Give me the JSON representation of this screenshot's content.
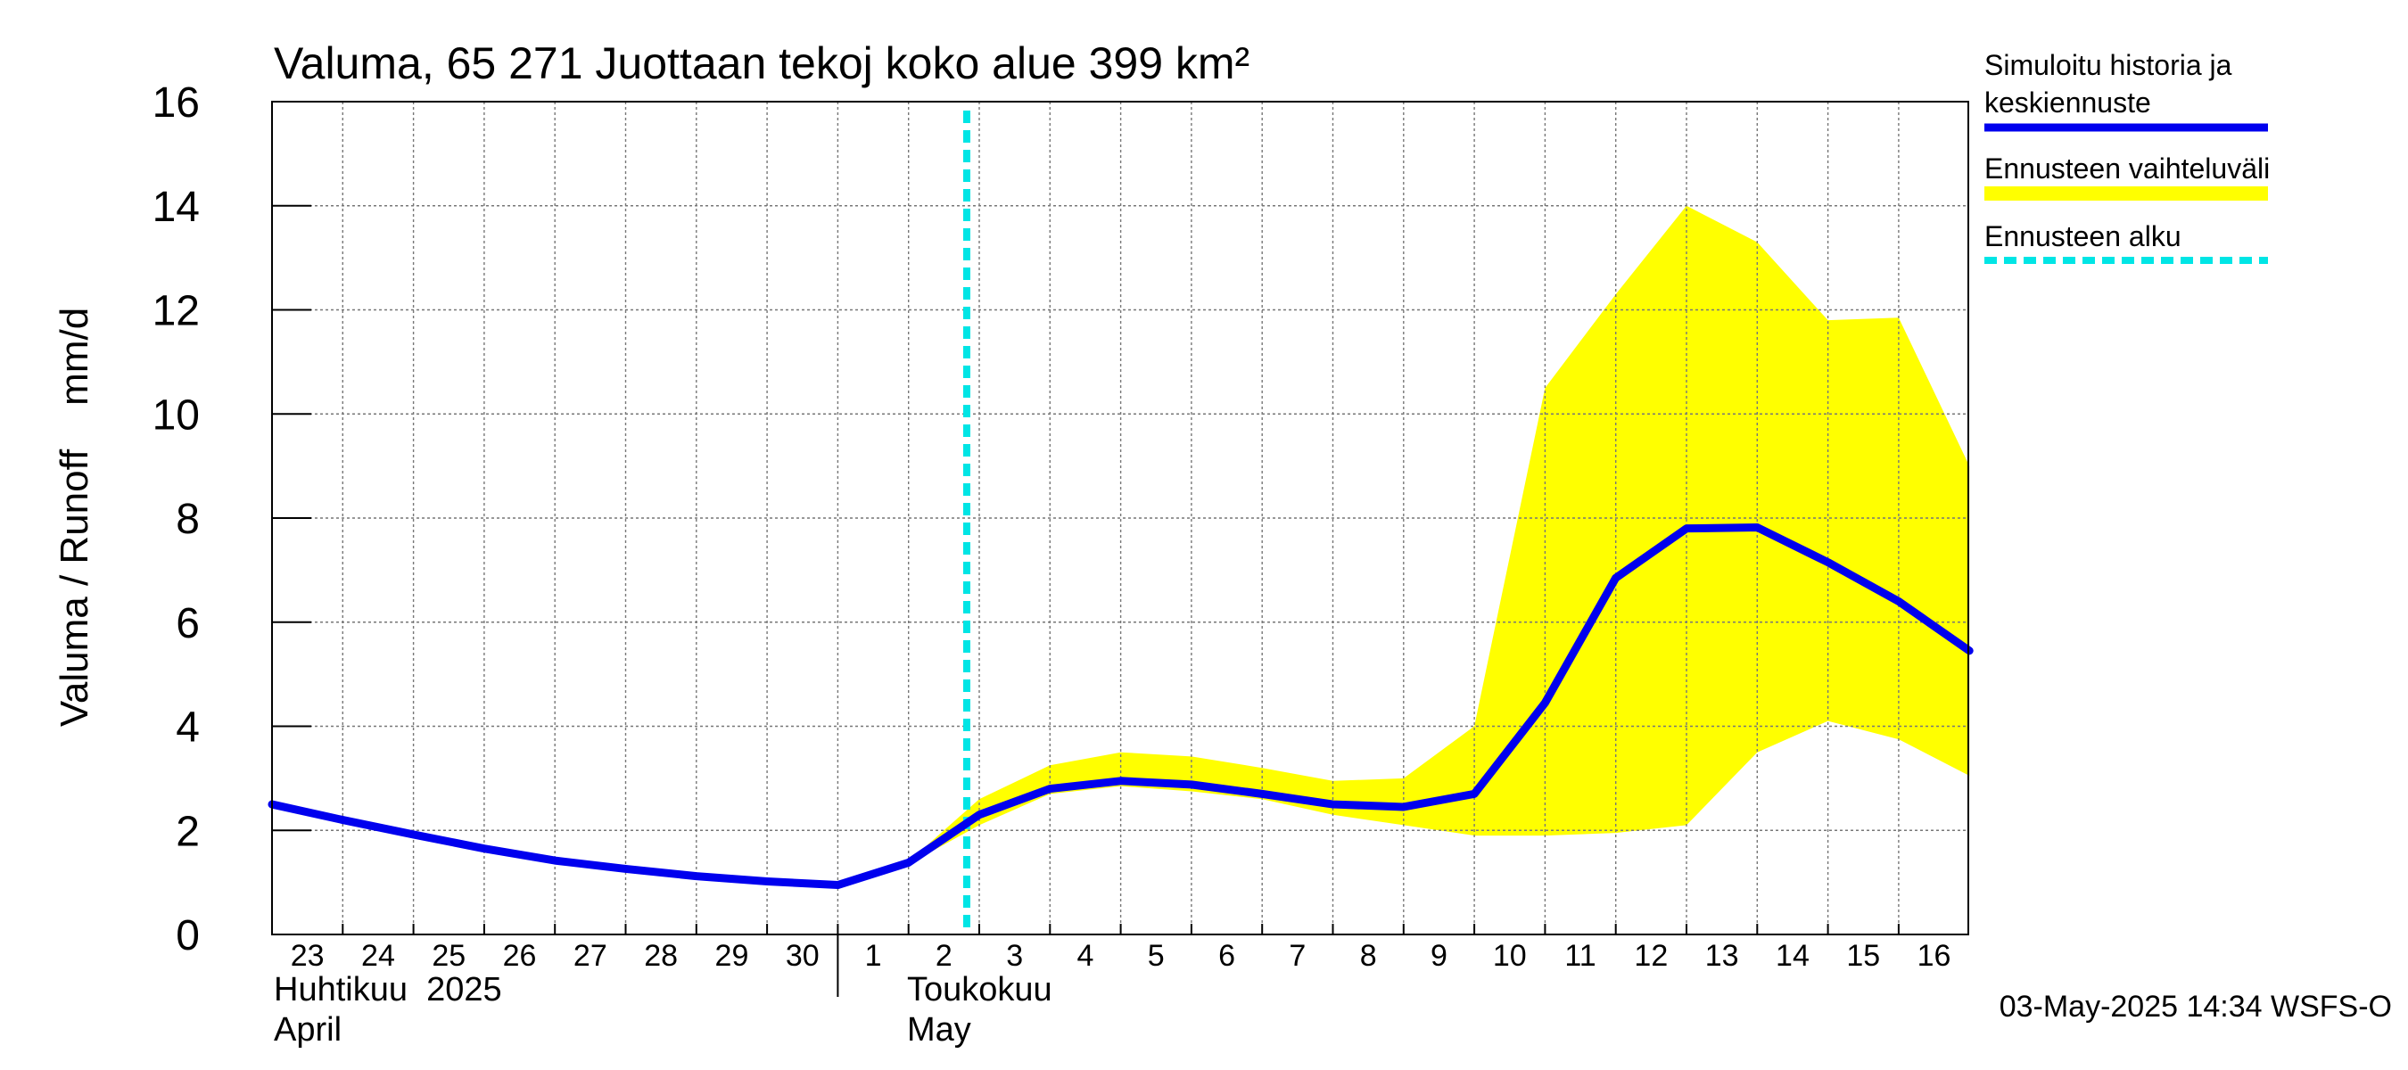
{
  "chart_data": {
    "type": "line",
    "title": "Valuma, 65 271 Juottaan tekoj koko alue 399 km²",
    "ylabel": "Valuma / Runoff    mm/d",
    "ylim": [
      0,
      16
    ],
    "yticks": [
      0,
      2,
      4,
      6,
      8,
      10,
      12,
      14,
      16
    ],
    "x_dates": [
      "2025-04-23",
      "2025-04-24",
      "2025-04-25",
      "2025-04-26",
      "2025-04-27",
      "2025-04-28",
      "2025-04-29",
      "2025-04-30",
      "2025-05-01",
      "2025-05-02",
      "2025-05-03",
      "2025-05-04",
      "2025-05-05",
      "2025-05-06",
      "2025-05-07",
      "2025-05-08",
      "2025-05-09",
      "2025-05-10",
      "2025-05-11",
      "2025-05-12",
      "2025-05-13",
      "2025-05-14",
      "2025-05-15",
      "2025-05-16"
    ],
    "x_tick_labels": [
      "23",
      "24",
      "25",
      "26",
      "27",
      "28",
      "29",
      "30",
      "1",
      "2",
      "3",
      "4",
      "5",
      "6",
      "7",
      "8",
      "9",
      "10",
      "11",
      "12",
      "13",
      "14",
      "15",
      "16"
    ],
    "month_labels": [
      {
        "line1": "Huhtikuu  2025",
        "line2": "April"
      },
      {
        "line1": "Toukokuu",
        "line2": "May"
      }
    ],
    "grid": true,
    "legend_position": "right",
    "series": [
      {
        "name": "Simuloitu historia ja keskiennuste",
        "color": "#0000ee",
        "points": [
          [
            "2025-04-23",
            2.5
          ],
          [
            "2025-04-24",
            2.2
          ],
          [
            "2025-04-25",
            1.92
          ],
          [
            "2025-04-26",
            1.65
          ],
          [
            "2025-04-27",
            1.42
          ],
          [
            "2025-04-28",
            1.26
          ],
          [
            "2025-04-29",
            1.12
          ],
          [
            "2025-04-30",
            1.02
          ],
          [
            "2025-05-01",
            0.95
          ],
          [
            "2025-05-02",
            1.38
          ],
          [
            "2025-05-03",
            2.3
          ],
          [
            "2025-05-04",
            2.8
          ],
          [
            "2025-05-05",
            2.95
          ],
          [
            "2025-05-06",
            2.88
          ],
          [
            "2025-05-07",
            2.7
          ],
          [
            "2025-05-08",
            2.5
          ],
          [
            "2025-05-09",
            2.45
          ],
          [
            "2025-05-10",
            2.7
          ],
          [
            "2025-05-11",
            4.45
          ],
          [
            "2025-05-12",
            6.85
          ],
          [
            "2025-05-13",
            7.8
          ],
          [
            "2025-05-14",
            7.82
          ],
          [
            "2025-05-15",
            7.15
          ],
          [
            "2025-05-16",
            6.4
          ],
          [
            "2025-05-17",
            5.45
          ]
        ]
      },
      {
        "name": "Ennusteen vaihteluväli",
        "color": "#ffff00",
        "upper": [
          [
            "2025-05-02",
            1.4
          ],
          [
            "2025-05-03",
            2.6
          ],
          [
            "2025-05-04",
            3.25
          ],
          [
            "2025-05-05",
            3.5
          ],
          [
            "2025-05-06",
            3.42
          ],
          [
            "2025-05-07",
            3.2
          ],
          [
            "2025-05-08",
            2.95
          ],
          [
            "2025-05-09",
            3.0
          ],
          [
            "2025-05-10",
            4.0
          ],
          [
            "2025-05-11",
            10.5
          ],
          [
            "2025-05-12",
            12.3
          ],
          [
            "2025-05-13",
            14.0
          ],
          [
            "2025-05-14",
            13.3
          ],
          [
            "2025-05-15",
            11.8
          ],
          [
            "2025-05-16",
            11.85
          ],
          [
            "2025-05-17",
            9.0
          ]
        ],
        "lower": [
          [
            "2025-05-02",
            1.35
          ],
          [
            "2025-05-03",
            2.1
          ],
          [
            "2025-05-04",
            2.7
          ],
          [
            "2025-05-05",
            2.85
          ],
          [
            "2025-05-06",
            2.75
          ],
          [
            "2025-05-07",
            2.6
          ],
          [
            "2025-05-08",
            2.3
          ],
          [
            "2025-05-09",
            2.1
          ],
          [
            "2025-05-10",
            1.9
          ],
          [
            "2025-05-11",
            1.9
          ],
          [
            "2025-05-12",
            1.95
          ],
          [
            "2025-05-13",
            2.1
          ],
          [
            "2025-05-14",
            3.5
          ],
          [
            "2025-05-15",
            4.1
          ],
          [
            "2025-05-16",
            3.75
          ],
          [
            "2025-05-17",
            3.05
          ]
        ]
      },
      {
        "name": "Ennusteen alku",
        "color": "#00e5e5",
        "date": "2025-05-03"
      }
    ],
    "legend": {
      "sim_line1": "Simuloitu historia ja",
      "sim_line2": "keskiennuste",
      "range_label": "Ennusteen vaihteluväli",
      "start_label": "Ennusteen alku"
    },
    "footer": "03-May-2025 14:34 WSFS-O"
  }
}
